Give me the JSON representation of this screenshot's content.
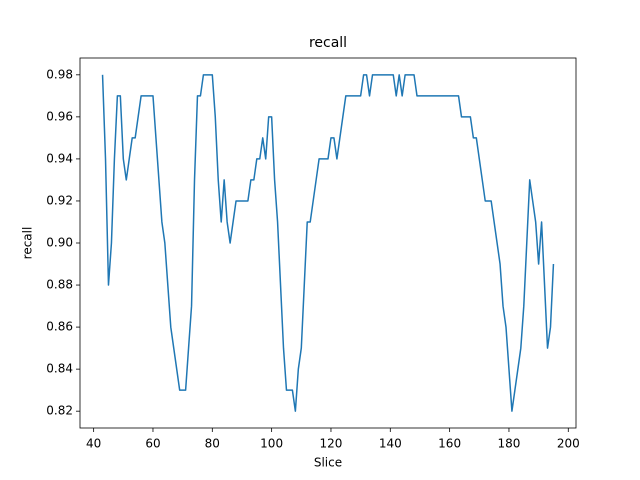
{
  "chart_data": {
    "type": "line",
    "title": "recall",
    "x_label": "Slice",
    "y_label": "recall",
    "color": "#1f77b4",
    "grid": false,
    "x": [
      43,
      44,
      45,
      46,
      47,
      48,
      49,
      50,
      51,
      52,
      53,
      54,
      55,
      56,
      57,
      58,
      59,
      60,
      61,
      62,
      63,
      64,
      65,
      66,
      67,
      68,
      69,
      70,
      71,
      72,
      73,
      74,
      75,
      76,
      77,
      78,
      79,
      80,
      81,
      82,
      83,
      84,
      85,
      86,
      87,
      88,
      89,
      90,
      91,
      92,
      93,
      94,
      95,
      96,
      97,
      98,
      99,
      100,
      101,
      102,
      103,
      104,
      105,
      106,
      107,
      108,
      109,
      110,
      111,
      112,
      113,
      114,
      115,
      116,
      117,
      118,
      119,
      120,
      121,
      122,
      123,
      124,
      125,
      126,
      127,
      128,
      129,
      130,
      131,
      132,
      133,
      134,
      135,
      136,
      137,
      138,
      139,
      140,
      141,
      142,
      143,
      144,
      145,
      146,
      147,
      148,
      149,
      150,
      151,
      152,
      153,
      154,
      155,
      156,
      157,
      158,
      159,
      160,
      161,
      162,
      163,
      164,
      165,
      166,
      167,
      168,
      169,
      170,
      171,
      172,
      173,
      174,
      175,
      176,
      177,
      178,
      179,
      180,
      181,
      182,
      183,
      184,
      185,
      186,
      187,
      188,
      189,
      190,
      191,
      192,
      193,
      194,
      195
    ],
    "values": [
      0.98,
      0.94,
      0.88,
      0.9,
      0.94,
      0.97,
      0.97,
      0.94,
      0.93,
      0.94,
      0.95,
      0.95,
      0.96,
      0.97,
      0.97,
      0.97,
      0.97,
      0.97,
      0.95,
      0.93,
      0.91,
      0.9,
      0.88,
      0.86,
      0.85,
      0.84,
      0.83,
      0.83,
      0.83,
      0.85,
      0.87,
      0.93,
      0.97,
      0.97,
      0.98,
      0.98,
      0.98,
      0.98,
      0.96,
      0.93,
      0.91,
      0.93,
      0.91,
      0.9,
      0.91,
      0.92,
      0.92,
      0.92,
      0.92,
      0.92,
      0.93,
      0.93,
      0.94,
      0.94,
      0.95,
      0.94,
      0.96,
      0.96,
      0.93,
      0.91,
      0.88,
      0.85,
      0.83,
      0.83,
      0.83,
      0.82,
      0.84,
      0.85,
      0.88,
      0.91,
      0.91,
      0.92,
      0.93,
      0.94,
      0.94,
      0.94,
      0.94,
      0.95,
      0.95,
      0.94,
      0.95,
      0.96,
      0.97,
      0.97,
      0.97,
      0.97,
      0.97,
      0.97,
      0.98,
      0.98,
      0.97,
      0.98,
      0.98,
      0.98,
      0.98,
      0.98,
      0.98,
      0.98,
      0.98,
      0.97,
      0.98,
      0.97,
      0.98,
      0.98,
      0.98,
      0.98,
      0.97,
      0.97,
      0.97,
      0.97,
      0.97,
      0.97,
      0.97,
      0.97,
      0.97,
      0.97,
      0.97,
      0.97,
      0.97,
      0.97,
      0.97,
      0.96,
      0.96,
      0.96,
      0.96,
      0.95,
      0.95,
      0.94,
      0.93,
      0.92,
      0.92,
      0.92,
      0.91,
      0.9,
      0.89,
      0.87,
      0.86,
      0.84,
      0.82,
      0.83,
      0.84,
      0.85,
      0.87,
      0.9,
      0.93,
      0.92,
      0.91,
      0.89,
      0.91,
      0.88,
      0.85,
      0.86,
      0.89
    ],
    "xlim": [
      35.4,
      202.6
    ],
    "xticks": [
      40,
      60,
      80,
      100,
      120,
      140,
      160,
      180,
      200
    ],
    "ylim": [
      0.812,
      0.988
    ],
    "yticks": [
      0.82,
      0.84,
      0.86,
      0.88,
      {
        "value": 0.9,
        "label": "0.90"
      },
      0.92,
      0.94,
      0.96,
      0.98
    ]
  }
}
